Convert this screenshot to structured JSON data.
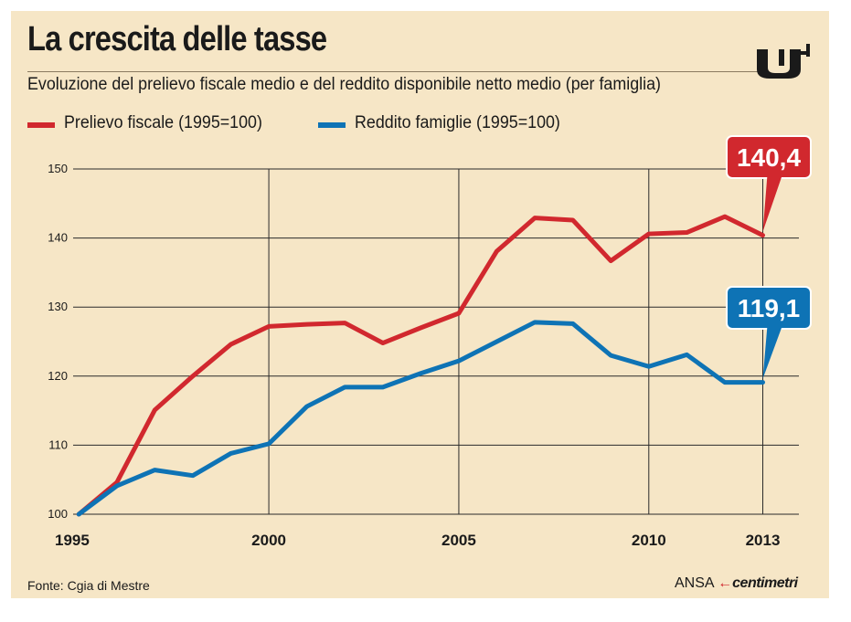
{
  "header": {
    "title": "La crescita delle tasse",
    "subtitle": "Evoluzione del prelievo fiscale medio e del reddito disponibile netto medio (per famiglia)"
  },
  "logo": {
    "icon": "press-logo-icon"
  },
  "colors": {
    "background": "#f6e6c6",
    "red": "#d1282e",
    "blue": "#0e73b5",
    "grid": "#2a2a2a"
  },
  "legend": [
    {
      "label": "Prelievo fiscale (1995=100)",
      "color": "#d1282e"
    },
    {
      "label": "Reddito famiglie (1995=100)",
      "color": "#0e73b5"
    }
  ],
  "chart_data": {
    "type": "line",
    "title": "La crescita delle tasse",
    "subtitle": "Evoluzione del prelievo fiscale medio e del reddito disponibile netto medio (per famiglia)",
    "xlabel": "",
    "ylabel": "",
    "x": [
      1995,
      1996,
      1997,
      1998,
      1999,
      2000,
      2001,
      2002,
      2003,
      2004,
      2005,
      2006,
      2007,
      2008,
      2009,
      2010,
      2011,
      2012,
      2013
    ],
    "x_ticks": [
      "1995",
      "2000",
      "2005",
      "2010",
      "2013"
    ],
    "x_tick_values": [
      1995,
      2000,
      2005,
      2010,
      2013
    ],
    "y_ticks": [
      "100",
      "110",
      "120",
      "130",
      "140",
      "150"
    ],
    "ylim": [
      100,
      150
    ],
    "grid": true,
    "legend_position": "top-left",
    "series": [
      {
        "name": "Prelievo fiscale (1995=100)",
        "color": "#d1282e",
        "values": [
          100.0,
          104.6,
          115.1,
          120.0,
          124.6,
          127.2,
          127.5,
          127.7,
          124.8,
          127.0,
          129.1,
          138.1,
          142.9,
          142.6,
          136.7,
          140.6,
          140.8,
          143.1,
          140.4
        ],
        "end_label": "140,4"
      },
      {
        "name": "Reddito famiglie (1995=100)",
        "color": "#0e73b5",
        "values": [
          100.0,
          104.1,
          106.4,
          105.6,
          108.8,
          110.2,
          115.6,
          118.4,
          118.4,
          120.4,
          122.2,
          125.0,
          127.8,
          127.6,
          123.0,
          121.4,
          123.1,
          119.1,
          119.1
        ],
        "end_label": "119,1"
      }
    ]
  },
  "footer": {
    "source": "Fonte: Cgia di Mestre",
    "credit_prefix": "ANSA",
    "credit_arrow": "←",
    "credit_brand": "centimetri"
  }
}
